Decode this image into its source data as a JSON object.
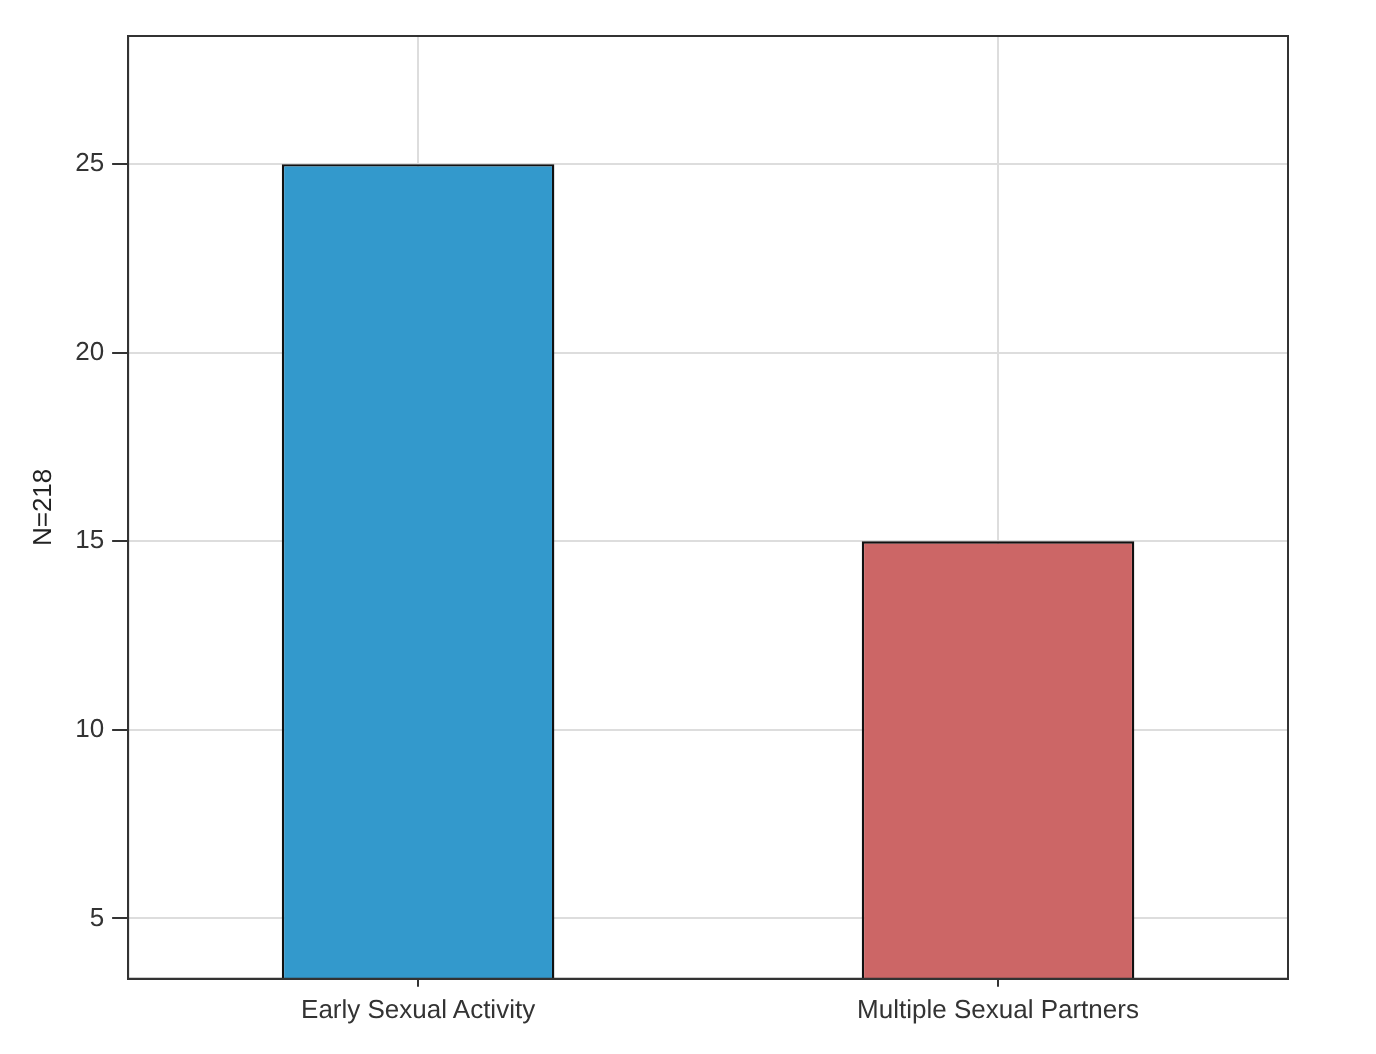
{
  "chart_data": {
    "type": "bar",
    "ylabel": "N=218",
    "categories": [
      "Early Sexual Activity",
      "Multiple Sexual Partners"
    ],
    "values": [
      25,
      15
    ],
    "colors": [
      "#3399cc",
      "#cc6666"
    ],
    "ylim": [
      3.4,
      28.4
    ],
    "yticks": [
      5,
      10,
      15,
      20,
      25
    ],
    "grid": true,
    "legend": false
  }
}
